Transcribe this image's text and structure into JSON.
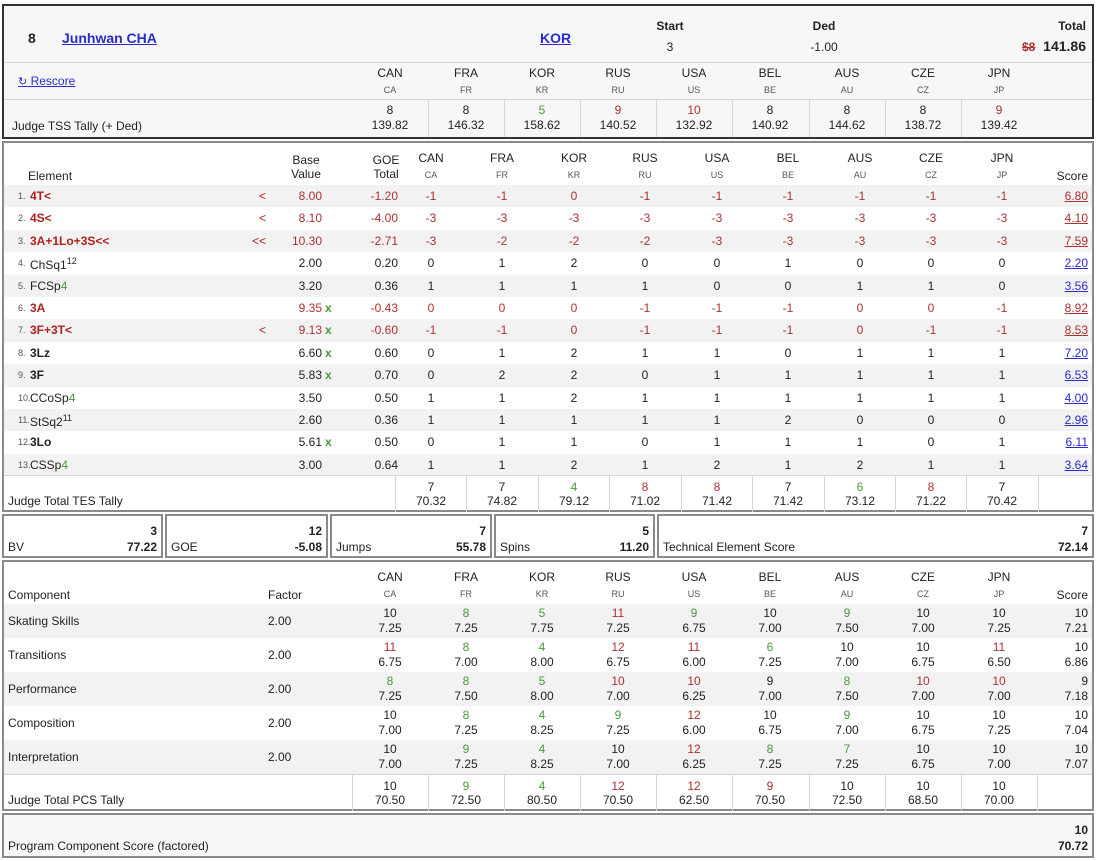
{
  "header": {
    "rank": "8",
    "skater": "Junhwan CHA",
    "nation": "KOR",
    "start_label": "Start",
    "start_value": "3",
    "ded_label": "Ded",
    "ded_value": "-1.00",
    "total_label": "Total",
    "total_icon": "$8",
    "total_value": "141.86",
    "rescore": "Rescore",
    "tally_label": "Judge TSS Tally (+ Ded)"
  },
  "judges": [
    {
      "code": "CAN",
      "sub": "CA"
    },
    {
      "code": "FRA",
      "sub": "FR"
    },
    {
      "code": "KOR",
      "sub": "KR"
    },
    {
      "code": "RUS",
      "sub": "RU"
    },
    {
      "code": "USA",
      "sub": "US"
    },
    {
      "code": "BEL",
      "sub": "BE"
    },
    {
      "code": "AUS",
      "sub": "AU"
    },
    {
      "code": "CZE",
      "sub": "CZ"
    },
    {
      "code": "JPN",
      "sub": "JP"
    }
  ],
  "tss": [
    {
      "rank": "8",
      "val": "139.82",
      "color": "#222"
    },
    {
      "rank": "8",
      "val": "146.32",
      "color": "#222"
    },
    {
      "rank": "5",
      "val": "158.62",
      "color": "#4a9a3a"
    },
    {
      "rank": "9",
      "val": "140.52",
      "color": "#b03030"
    },
    {
      "rank": "10",
      "val": "132.92",
      "color": "#b03030"
    },
    {
      "rank": "8",
      "val": "140.92",
      "color": "#222"
    },
    {
      "rank": "8",
      "val": "144.62",
      "color": "#222"
    },
    {
      "rank": "8",
      "val": "138.72",
      "color": "#222"
    },
    {
      "rank": "9",
      "val": "139.42",
      "color": "#b03030"
    }
  ],
  "elements_header": {
    "element": "Element",
    "base1": "Base",
    "base2": "Value",
    "goe1": "GOE",
    "goe2": "Total",
    "score": "Score"
  },
  "elements": [
    {
      "n": "1.",
      "name": "4T<",
      "sup": "",
      "lvl": "",
      "style": "red",
      "flag": "<",
      "bv": "8.00",
      "bvred": true,
      "x": "",
      "goe": "-1.20",
      "goered": true,
      "j": [
        "-1",
        "-1",
        "0",
        "-1",
        "-1",
        "-1",
        "-1",
        "-1",
        "-1"
      ],
      "jred": true,
      "score": "6.80",
      "sred": true
    },
    {
      "n": "2.",
      "name": "4S<",
      "sup": "",
      "lvl": "",
      "style": "red",
      "flag": "<",
      "bv": "8.10",
      "bvred": true,
      "x": "",
      "goe": "-4.00",
      "goered": true,
      "j": [
        "-3",
        "-3",
        "-3",
        "-3",
        "-3",
        "-3",
        "-3",
        "-3",
        "-3"
      ],
      "jred": true,
      "score": "4.10",
      "sred": true
    },
    {
      "n": "3.",
      "name": "3A+1Lo+3S<<",
      "sup": "",
      "lvl": "",
      "style": "red",
      "flag": "<<",
      "bv": "10.30",
      "bvred": true,
      "x": "",
      "goe": "-2.71",
      "goered": true,
      "j": [
        "-3",
        "-2",
        "-2",
        "-2",
        "-3",
        "-3",
        "-3",
        "-3",
        "-3"
      ],
      "jred": true,
      "score": "7.59",
      "sred": true
    },
    {
      "n": "4.",
      "name": "ChSq1",
      "sup": "12",
      "lvl": "",
      "style": "norm",
      "flag": "",
      "bv": "2.00",
      "bvred": false,
      "x": "",
      "goe": "0.20",
      "goered": false,
      "j": [
        "0",
        "1",
        "2",
        "0",
        "0",
        "1",
        "0",
        "0",
        "0"
      ],
      "jred": false,
      "score": "2.20",
      "sred": false
    },
    {
      "n": "5.",
      "name": "FCSp",
      "sup": "",
      "lvl": "4",
      "style": "norm",
      "flag": "",
      "bv": "3.20",
      "bvred": false,
      "x": "",
      "goe": "0.36",
      "goered": false,
      "j": [
        "1",
        "1",
        "1",
        "1",
        "0",
        "0",
        "1",
        "1",
        "0"
      ],
      "jred": false,
      "score": "3.56",
      "sred": false
    },
    {
      "n": "6.",
      "name": "3A",
      "sup": "",
      "lvl": "",
      "style": "red",
      "flag": "",
      "bv": "9.35",
      "bvred": true,
      "x": "x",
      "goe": "-0.43",
      "goered": true,
      "j": [
        "0",
        "0",
        "0",
        "-1",
        "-1",
        "-1",
        "0",
        "0",
        "-1"
      ],
      "jred": true,
      "score": "8.92",
      "sred": true
    },
    {
      "n": "7.",
      "name": "3F+3T<",
      "sup": "",
      "lvl": "",
      "style": "red",
      "flag": "<",
      "bv": "9.13",
      "bvred": true,
      "x": "x",
      "goe": "-0.60",
      "goered": true,
      "j": [
        "-1",
        "-1",
        "0",
        "-1",
        "-1",
        "-1",
        "0",
        "-1",
        "-1"
      ],
      "jred": true,
      "score": "8.53",
      "sred": true
    },
    {
      "n": "8.",
      "name": "3Lz",
      "sup": "",
      "lvl": "",
      "style": "bold",
      "flag": "",
      "bv": "6.60",
      "bvred": false,
      "x": "x",
      "goe": "0.60",
      "goered": false,
      "j": [
        "0",
        "1",
        "2",
        "1",
        "1",
        "0",
        "1",
        "1",
        "1"
      ],
      "jred": false,
      "score": "7.20",
      "sred": false
    },
    {
      "n": "9.",
      "name": "3F",
      "sup": "",
      "lvl": "",
      "style": "bold",
      "flag": "",
      "bv": "5.83",
      "bvred": false,
      "x": "x",
      "goe": "0.70",
      "goered": false,
      "j": [
        "0",
        "2",
        "2",
        "0",
        "1",
        "1",
        "1",
        "1",
        "1"
      ],
      "jred": false,
      "score": "6.53",
      "sred": false
    },
    {
      "n": "10.",
      "name": "CCoSp",
      "sup": "",
      "lvl": "4",
      "style": "norm",
      "flag": "",
      "bv": "3.50",
      "bvred": false,
      "x": "",
      "goe": "0.50",
      "goered": false,
      "j": [
        "1",
        "1",
        "2",
        "1",
        "1",
        "1",
        "1",
        "1",
        "1"
      ],
      "jred": false,
      "score": "4.00",
      "sred": false
    },
    {
      "n": "11.",
      "name": "StSq2",
      "sup": "11",
      "lvl": "",
      "style": "norm",
      "flag": "",
      "bv": "2.60",
      "bvred": false,
      "x": "",
      "goe": "0.36",
      "goered": false,
      "j": [
        "1",
        "1",
        "1",
        "1",
        "1",
        "2",
        "0",
        "0",
        "0"
      ],
      "jred": false,
      "score": "2.96",
      "sred": false
    },
    {
      "n": "12.",
      "name": "3Lo",
      "sup": "",
      "lvl": "",
      "style": "bold",
      "flag": "",
      "bv": "5.61",
      "bvred": false,
      "x": "x",
      "goe": "0.50",
      "goered": false,
      "j": [
        "0",
        "1",
        "1",
        "0",
        "1",
        "1",
        "1",
        "0",
        "1"
      ],
      "jred": false,
      "score": "6.11",
      "sred": false
    },
    {
      "n": "13.",
      "name": "CSSp",
      "sup": "",
      "lvl": "4",
      "style": "norm",
      "flag": "",
      "bv": "3.00",
      "bvred": false,
      "x": "",
      "goe": "0.64",
      "goered": false,
      "j": [
        "1",
        "1",
        "2",
        "1",
        "2",
        "1",
        "2",
        "1",
        "1"
      ],
      "jred": false,
      "score": "3.64",
      "sred": false
    }
  ],
  "tes_tally": {
    "label": "Judge Total TES Tally",
    "cols": [
      {
        "rank": "7",
        "val": "70.32",
        "color": "#222"
      },
      {
        "rank": "7",
        "val": "74.82",
        "color": "#222"
      },
      {
        "rank": "4",
        "val": "79.12",
        "color": "#4a9a3a"
      },
      {
        "rank": "8",
        "val": "71.02",
        "color": "#b03030"
      },
      {
        "rank": "8",
        "val": "71.42",
        "color": "#b03030"
      },
      {
        "rank": "7",
        "val": "71.42",
        "color": "#222"
      },
      {
        "rank": "6",
        "val": "73.12",
        "color": "#4a9a3a"
      },
      {
        "rank": "8",
        "val": "71.22",
        "color": "#b03030"
      },
      {
        "rank": "7",
        "val": "70.42",
        "color": "#222"
      }
    ]
  },
  "summary": [
    {
      "label": "BV",
      "rank": "3",
      "value": "77.22"
    },
    {
      "label": "GOE",
      "rank": "12",
      "value": "-5.08"
    },
    {
      "label": "Jumps",
      "rank": "7",
      "value": "55.78"
    },
    {
      "label": "Spins",
      "rank": "5",
      "value": "11.20"
    },
    {
      "label": "Technical Element Score",
      "rank": "7",
      "value": "72.14"
    }
  ],
  "pcs_header": {
    "component": "Component",
    "factor": "Factor",
    "score": "Score"
  },
  "components": [
    {
      "name": "Skating Skills",
      "factor": "2.00",
      "r": [
        "10",
        "8",
        "5",
        "11",
        "9",
        "10",
        "9",
        "10",
        "10"
      ],
      "rc": [
        "#222",
        "#4a9a3a",
        "#4a9a3a",
        "#b03030",
        "#4a9a3a",
        "#222",
        "#4a9a3a",
        "#222",
        "#222"
      ],
      "v": [
        "7.25",
        "7.25",
        "7.75",
        "7.25",
        "6.75",
        "7.00",
        "7.50",
        "7.00",
        "7.25"
      ],
      "srank": "10",
      "score": "7.21"
    },
    {
      "name": "Transitions",
      "factor": "2.00",
      "r": [
        "11",
        "8",
        "4",
        "12",
        "11",
        "6",
        "10",
        "10",
        "11"
      ],
      "rc": [
        "#b03030",
        "#4a9a3a",
        "#4a9a3a",
        "#b03030",
        "#b03030",
        "#4a9a3a",
        "#222",
        "#222",
        "#b03030"
      ],
      "v": [
        "6.75",
        "7.00",
        "8.00",
        "6.75",
        "6.00",
        "7.25",
        "7.00",
        "6.75",
        "6.50"
      ],
      "srank": "10",
      "score": "6.86"
    },
    {
      "name": "Performance",
      "factor": "2.00",
      "r": [
        "8",
        "8",
        "5",
        "10",
        "10",
        "9",
        "8",
        "10",
        "10"
      ],
      "rc": [
        "#4a9a3a",
        "#4a9a3a",
        "#4a9a3a",
        "#b03030",
        "#b03030",
        "#222",
        "#4a9a3a",
        "#b03030",
        "#b03030"
      ],
      "v": [
        "7.25",
        "7.50",
        "8.00",
        "7.00",
        "6.25",
        "7.00",
        "7.50",
        "7.00",
        "7.00"
      ],
      "srank": "9",
      "score": "7.18"
    },
    {
      "name": "Composition",
      "factor": "2.00",
      "r": [
        "10",
        "8",
        "4",
        "9",
        "12",
        "10",
        "9",
        "10",
        "10"
      ],
      "rc": [
        "#222",
        "#4a9a3a",
        "#4a9a3a",
        "#4a9a3a",
        "#b03030",
        "#222",
        "#4a9a3a",
        "#222",
        "#222"
      ],
      "v": [
        "7.00",
        "7.25",
        "8.25",
        "7.25",
        "6.00",
        "6.75",
        "7.00",
        "6.75",
        "7.25"
      ],
      "srank": "10",
      "score": "7.04"
    },
    {
      "name": "Interpretation",
      "factor": "2.00",
      "r": [
        "10",
        "9",
        "4",
        "10",
        "12",
        "8",
        "7",
        "10",
        "10"
      ],
      "rc": [
        "#222",
        "#4a9a3a",
        "#4a9a3a",
        "#222",
        "#b03030",
        "#4a9a3a",
        "#4a9a3a",
        "#222",
        "#222"
      ],
      "v": [
        "7.00",
        "7.25",
        "8.25",
        "7.00",
        "6.25",
        "7.25",
        "7.25",
        "6.75",
        "7.00"
      ],
      "srank": "10",
      "score": "7.07"
    }
  ],
  "pcs_tally": {
    "label": "Judge Total PCS Tally",
    "cols": [
      {
        "rank": "10",
        "val": "70.50",
        "color": "#222"
      },
      {
        "rank": "9",
        "val": "72.50",
        "color": "#4a9a3a"
      },
      {
        "rank": "4",
        "val": "80.50",
        "color": "#4a9a3a"
      },
      {
        "rank": "12",
        "val": "70.50",
        "color": "#b03030"
      },
      {
        "rank": "12",
        "val": "62.50",
        "color": "#b03030"
      },
      {
        "rank": "9",
        "val": "70.50",
        "color": "#b03030"
      },
      {
        "rank": "10",
        "val": "72.50",
        "color": "#222"
      },
      {
        "rank": "10",
        "val": "68.50",
        "color": "#222"
      },
      {
        "rank": "10",
        "val": "70.00",
        "color": "#222"
      }
    ]
  },
  "pcs_total": {
    "label": "Program Component Score (factored)",
    "rank": "10",
    "value": "70.72"
  },
  "colors": {
    "red": "#b03030",
    "green": "#4a9a3a",
    "link": "#2a2ad0",
    "border": "#8a8a8a",
    "alt_row": "#f2f2f2"
  }
}
